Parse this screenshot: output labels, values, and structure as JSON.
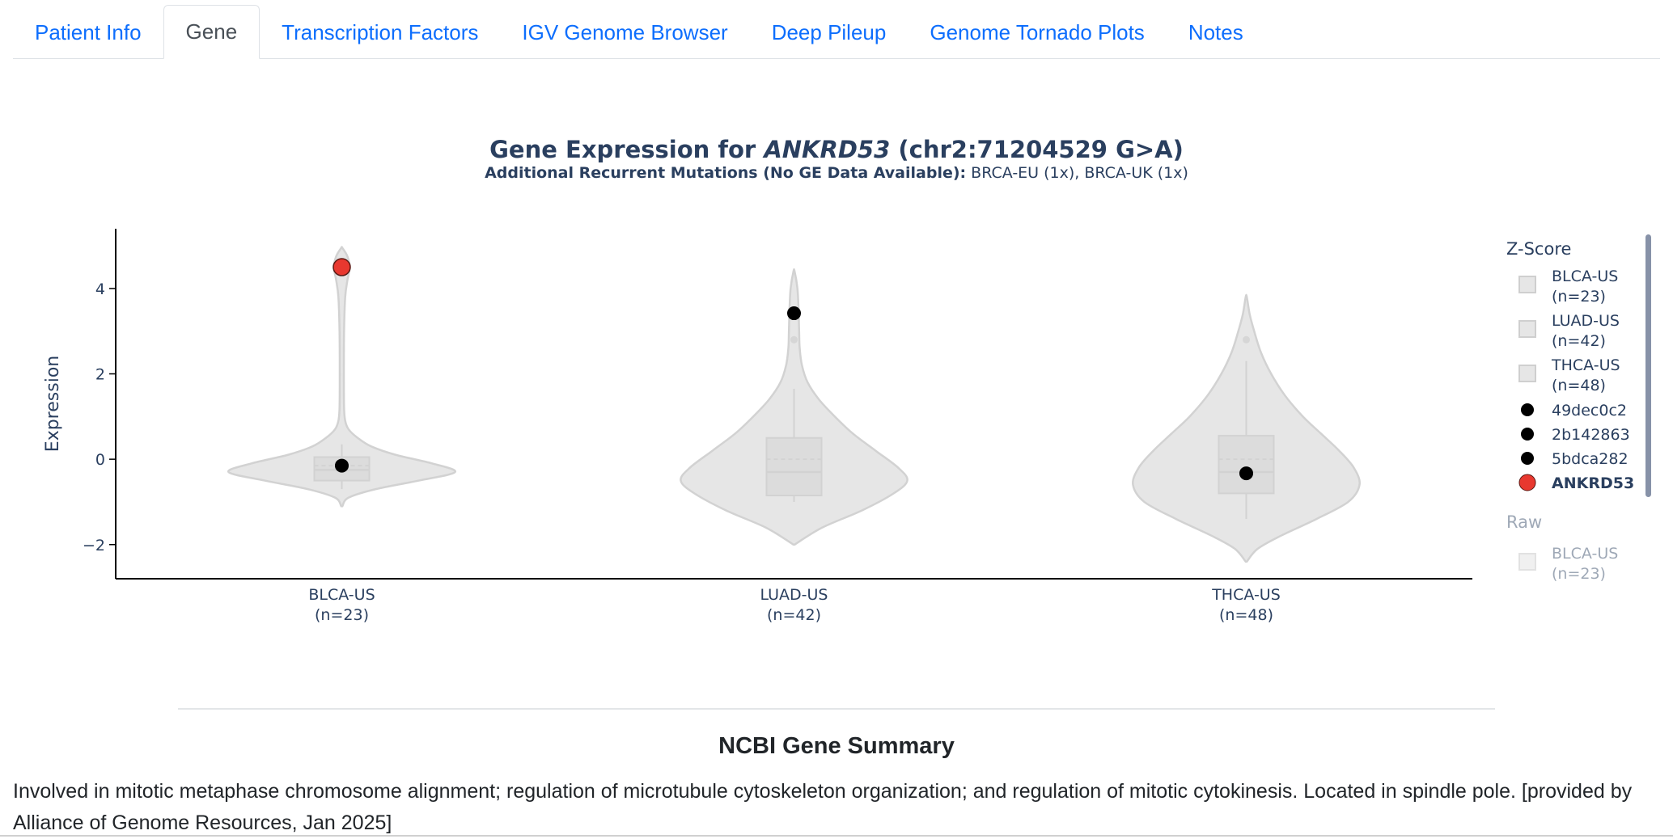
{
  "tabs": [
    {
      "label": "Patient Info",
      "active": false
    },
    {
      "label": "Gene",
      "active": true
    },
    {
      "label": "Transcription Factors",
      "active": false
    },
    {
      "label": "IGV Genome Browser",
      "active": false
    },
    {
      "label": "Deep Pileup",
      "active": false
    },
    {
      "label": "Genome Tornado Plots",
      "active": false
    },
    {
      "label": "Notes",
      "active": false
    }
  ],
  "chart_data": {
    "type": "violin",
    "title_prefix": "Gene Expression for ",
    "title_gene": "ANKRD53",
    "title_suffix": " (chr2:71204529 G>A)",
    "subtitle_bold": "Additional Recurrent Mutations (No GE Data Available):",
    "subtitle_rest": " BRCA-EU (1x), BRCA-UK (1x)",
    "ylabel": "Expression",
    "ylim": [
      -2.8,
      5.4
    ],
    "yticks": [
      -2,
      0,
      2,
      4
    ],
    "ytick_labels": [
      "−2",
      "0",
      "2",
      "4"
    ],
    "categories": [
      {
        "name": "BLCA-US",
        "n_label": "(n=23)"
      },
      {
        "name": "LUAD-US",
        "n_label": "(n=42)"
      },
      {
        "name": "THCA-US",
        "n_label": "(n=48)"
      }
    ],
    "violins": [
      {
        "category": "BLCA-US",
        "min": -1.1,
        "max": 4.95,
        "q1": -0.5,
        "median": -0.25,
        "q3": 0.05,
        "mean": -0.15,
        "whisker_low": -0.7,
        "whisker_high": 0.35,
        "outliers": [],
        "density": [
          [
            -1.1,
            0.005
          ],
          [
            -0.9,
            0.06
          ],
          [
            -0.7,
            0.3
          ],
          [
            -0.5,
            0.68
          ],
          [
            -0.3,
            1.0
          ],
          [
            -0.1,
            0.8
          ],
          [
            0.1,
            0.48
          ],
          [
            0.3,
            0.26
          ],
          [
            0.5,
            0.14
          ],
          [
            0.7,
            0.06
          ],
          [
            0.9,
            0.03
          ],
          [
            1.2,
            0.02
          ],
          [
            2.0,
            0.018
          ],
          [
            3.0,
            0.02
          ],
          [
            3.8,
            0.03
          ],
          [
            4.2,
            0.05
          ],
          [
            4.5,
            0.07
          ],
          [
            4.75,
            0.05
          ],
          [
            4.95,
            0.005
          ]
        ]
      },
      {
        "category": "LUAD-US",
        "min": -2.0,
        "max": 4.4,
        "q1": -0.85,
        "median": -0.3,
        "q3": 0.5,
        "mean": 0.0,
        "whisker_low": -1.0,
        "whisker_high": 1.65,
        "outliers": [
          2.8
        ],
        "density": [
          [
            -2.0,
            0.005
          ],
          [
            -1.6,
            0.25
          ],
          [
            -1.2,
            0.6
          ],
          [
            -0.8,
            0.88
          ],
          [
            -0.5,
            1.0
          ],
          [
            -0.2,
            0.92
          ],
          [
            0.2,
            0.72
          ],
          [
            0.6,
            0.52
          ],
          [
            1.0,
            0.36
          ],
          [
            1.4,
            0.22
          ],
          [
            1.8,
            0.12
          ],
          [
            2.2,
            0.07
          ],
          [
            2.6,
            0.05
          ],
          [
            3.0,
            0.045
          ],
          [
            3.5,
            0.04
          ],
          [
            4.0,
            0.03
          ],
          [
            4.4,
            0.005
          ]
        ]
      },
      {
        "category": "THCA-US",
        "min": -2.4,
        "max": 3.8,
        "q1": -0.8,
        "median": -0.3,
        "q3": 0.55,
        "mean": 0.0,
        "whisker_low": -1.4,
        "whisker_high": 2.3,
        "outliers": [
          2.8
        ],
        "density": [
          [
            -2.4,
            0.005
          ],
          [
            -2.1,
            0.1
          ],
          [
            -1.8,
            0.3
          ],
          [
            -1.4,
            0.62
          ],
          [
            -1.0,
            0.9
          ],
          [
            -0.6,
            1.0
          ],
          [
            -0.2,
            0.95
          ],
          [
            0.2,
            0.82
          ],
          [
            0.6,
            0.66
          ],
          [
            1.0,
            0.5
          ],
          [
            1.5,
            0.34
          ],
          [
            2.0,
            0.22
          ],
          [
            2.5,
            0.13
          ],
          [
            3.0,
            0.07
          ],
          [
            3.4,
            0.03
          ],
          [
            3.8,
            0.005
          ]
        ]
      }
    ],
    "points": [
      {
        "category": "BLCA-US",
        "y": 4.5,
        "series": "ANKRD53",
        "color": "#e8382f"
      },
      {
        "category": "BLCA-US",
        "y": -0.15,
        "series": "49dec0c2",
        "color": "#000000"
      },
      {
        "category": "LUAD-US",
        "y": 3.42,
        "series": "2b142863",
        "color": "#000000"
      },
      {
        "category": "THCA-US",
        "y": -0.33,
        "series": "5bdca282",
        "color": "#000000"
      }
    ],
    "legend": {
      "title": "Z-Score",
      "items": [
        {
          "type": "box",
          "line1": "BLCA-US",
          "line2": "(n=23)"
        },
        {
          "type": "box",
          "line1": "LUAD-US",
          "line2": "(n=42)"
        },
        {
          "type": "box",
          "line1": "THCA-US",
          "line2": "(n=48)"
        },
        {
          "type": "dot",
          "label": "49dec0c2",
          "color": "#000000"
        },
        {
          "type": "dot",
          "label": "2b142863",
          "color": "#000000"
        },
        {
          "type": "dot",
          "label": "5bdca282",
          "color": "#000000"
        },
        {
          "type": "dot",
          "label": "ANKRD53",
          "color": "#e8382f",
          "bold": true
        }
      ],
      "group2_title": "Raw",
      "group2_items": [
        {
          "type": "box",
          "line1": "BLCA-US",
          "line2": "(n=23)"
        }
      ]
    },
    "violin_fill": "#e6e6e6",
    "violin_line": "#d2d2d2",
    "axis_color": "#000000"
  },
  "summary": {
    "title": "NCBI Gene Summary",
    "text": "Involved in mitotic metaphase chromosome alignment; regulation of microtubule cytoskeleton organization; and regulation of mitotic cytokinesis. Located in spindle pole. [provided by Alliance of Genome Resources, Jan 2025]"
  }
}
